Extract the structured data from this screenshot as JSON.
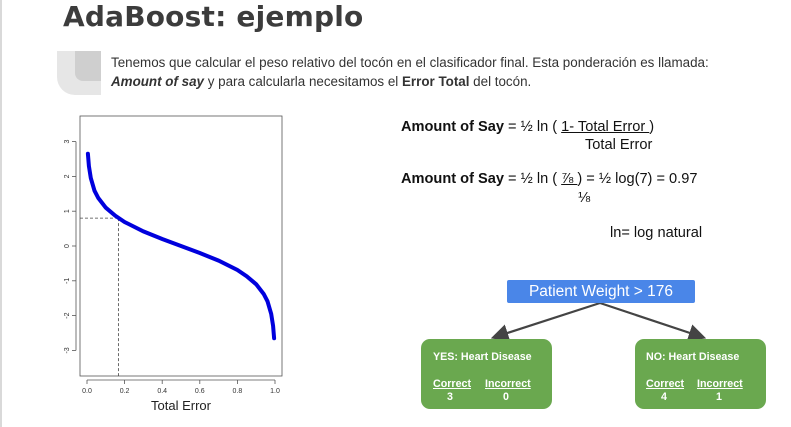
{
  "slide": {
    "title": "AdaBoost: ejemplo",
    "intro": {
      "text_a": "Tenemos que calcular el peso relativo del tocón en el clasificador final. Esta ponderación es llamada: ",
      "emph": "Amount of say",
      "text_b": " y para calcularla necesitamos el ",
      "strong": "Error Total",
      "text_c": " del tocón."
    }
  },
  "formulas": {
    "f1": {
      "label": "Amount of Say",
      "eq": " = ½ ln ( ",
      "numerator": " 1- Total Error ",
      "close": ")",
      "denominator": "Total Error"
    },
    "f2": {
      "label": "Amount of Say",
      "eq": " = ½ ln ( ",
      "numerator": " ⅞ ",
      "rest": ") = ½ log(7)  = 0.97",
      "denominator": "⅛"
    },
    "note": "ln= log natural"
  },
  "tree": {
    "root": "Patient Weight > 176",
    "leaves": [
      {
        "title": "YES: Heart Disease",
        "correct_label": "Correct",
        "incorrect_label": "Incorrect",
        "correct": "3",
        "incorrect": "0"
      },
      {
        "title": "NO: Heart Disease",
        "correct_label": "Correct",
        "incorrect_label": "Incorrect",
        "correct": "4",
        "incorrect": "1"
      }
    ],
    "node_color": "#4a86e8",
    "leaf_color": "#6aa84f"
  },
  "chart_data": {
    "type": "line",
    "xlabel": "Total Error",
    "ylabel": "",
    "xlim": [
      0,
      1
    ],
    "ylim": [
      -3.5,
      3.5
    ],
    "x_ticks": [
      "0.0",
      "0.2",
      "0.4",
      "0.6",
      "0.8",
      "1.0"
    ],
    "y_ticks": [
      "3",
      "2",
      "1",
      "0",
      "-1",
      "-2",
      "-3"
    ],
    "series": [
      {
        "color": "#0000dd",
        "x": [
          0.005,
          0.01,
          0.02,
          0.04,
          0.06,
          0.1,
          0.15,
          0.2,
          0.3,
          0.4,
          0.5,
          0.6,
          0.7,
          0.8,
          0.85,
          0.9,
          0.94,
          0.96,
          0.98,
          0.99,
          0.995
        ],
        "y": [
          2.65,
          2.3,
          1.95,
          1.59,
          1.38,
          1.1,
          0.87,
          0.69,
          0.42,
          0.2,
          0.0,
          -0.2,
          -0.42,
          -0.69,
          -0.87,
          -1.1,
          -1.38,
          -1.59,
          -1.95,
          -2.3,
          -2.65
        ]
      }
    ],
    "annotations": [
      {
        "x": 0.167,
        "y": 0.8,
        "style": "dashed reference lines"
      }
    ],
    "grid": false
  }
}
